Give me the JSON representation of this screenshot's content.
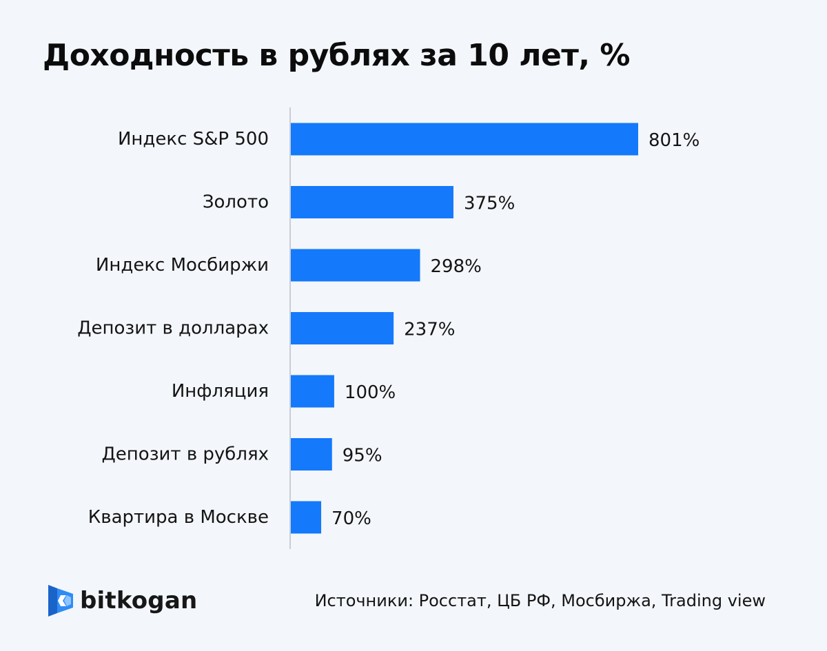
{
  "chart_data": {
    "type": "bar",
    "orientation": "horizontal",
    "title": "Доходность в рублях за 10 лет, %",
    "categories": [
      "Индекс S&P 500",
      "Золото",
      "Индекс Мосбиржи",
      "Депозит в долларах",
      "Инфляция",
      "Депозит в рублях",
      "Квартира в Москве"
    ],
    "values": [
      801,
      375,
      298,
      237,
      100,
      95,
      70
    ],
    "value_labels": [
      "801%",
      "375%",
      "298%",
      "237%",
      "100%",
      "95%",
      "70%"
    ],
    "xlim": [
      0,
      801
    ],
    "grid": false,
    "legend": "none",
    "bar_color": "#1479fb",
    "axis_color": "#c9ced5"
  },
  "brand": {
    "name": "bitkogan",
    "icon": "bitkogan-logo-icon",
    "icon_colors": [
      "#1a63c9",
      "#2f8cf5",
      "#8ec4ff"
    ]
  },
  "sources": "Источники: Росстат, ЦБ РФ, Мосбиржа, Trading view"
}
